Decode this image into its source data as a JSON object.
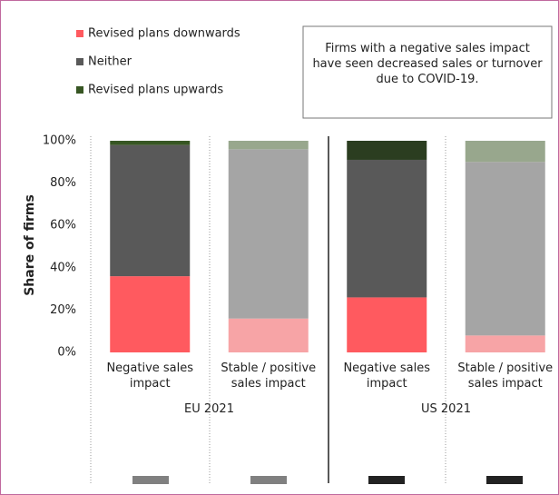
{
  "chart_data": {
    "type": "bar",
    "stacked": true,
    "ylabel": "Share of firms",
    "annotation": "Firms with a negative sales impact have seen decreased sales or turnover due to COVID-19.",
    "categories": [
      "Negative sales impact",
      "Stable / positive sales impact",
      "Negative sales impact",
      "Stable / positive sales impact"
    ],
    "groups": [
      "EU 2021",
      "US 2021"
    ],
    "series": [
      {
        "name": "Revised  plans downwards",
        "color": "#ff5a5f",
        "colors": [
          "#ff5a5f",
          "#f7a4a6",
          "#ff5a5f",
          "#f7a4a6"
        ],
        "values": [
          36,
          16,
          26,
          8
        ]
      },
      {
        "name": "Neither",
        "color": "#595959",
        "colors": [
          "#595959",
          "#a5a5a5",
          "#595959",
          "#a5a5a5"
        ],
        "values": [
          62,
          80,
          65,
          82
        ]
      },
      {
        "name": "Revised  plans upwards",
        "color": "#375623",
        "colors": [
          "#375623",
          "#98a78d",
          "#2b3d20",
          "#98a78d"
        ],
        "values": [
          2,
          4,
          9,
          10
        ]
      }
    ],
    "ylim": [
      0,
      100
    ],
    "yticks": [
      {
        "value": 0,
        "label": "0%"
      },
      {
        "value": 20,
        "label": "20%"
      },
      {
        "value": 40,
        "label": "40%"
      },
      {
        "value": 60,
        "label": "60%"
      },
      {
        "value": 80,
        "label": "80%"
      },
      {
        "value": 100,
        "label": "100%"
      }
    ]
  }
}
